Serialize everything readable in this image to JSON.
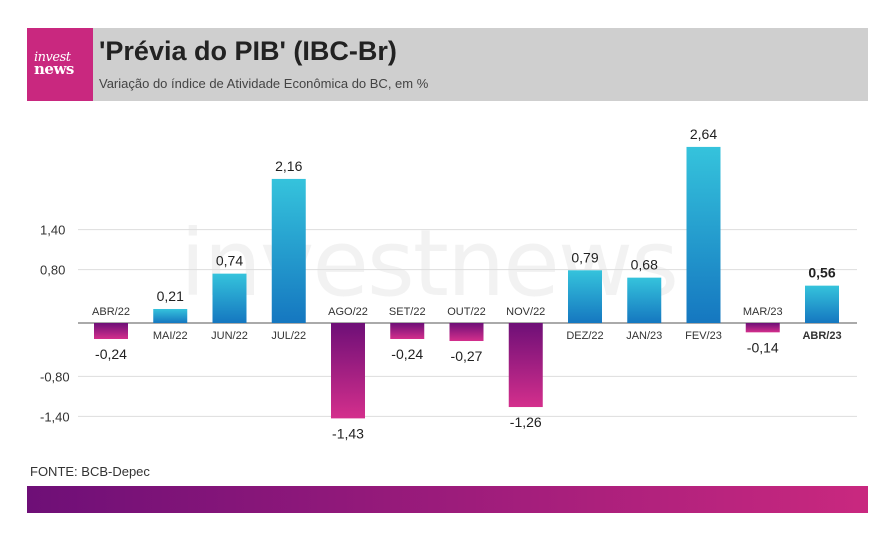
{
  "header": {
    "logo_line1": "invest",
    "logo_line2": "news",
    "title": "'Prévia do PIB' (IBC-Br)",
    "subtitle": "Variação do índice de Atividade Econômica do BC, em %"
  },
  "watermark": "investnews",
  "source": "FONTE: BCB-Depec",
  "colors": {
    "brand_magenta": "#c9287f",
    "brand_purple": "#6e0f77",
    "positive_top": "#35c3dc",
    "positive_bottom": "#1577c0",
    "negative_top": "#6e0f77",
    "negative_bottom": "#d42f8c"
  },
  "chart_data": {
    "type": "bar",
    "categories": [
      "ABR/22",
      "MAI/22",
      "JUN/22",
      "JUL/22",
      "AGO/22",
      "SET/22",
      "OUT/22",
      "NOV/22",
      "DEZ/22",
      "JAN/23",
      "FEV/23",
      "MAR/23",
      "ABR/23"
    ],
    "values": [
      -0.24,
      0.21,
      0.74,
      2.16,
      -1.43,
      -0.24,
      -0.27,
      -1.26,
      0.79,
      0.68,
      2.64,
      -0.14,
      0.56
    ],
    "value_labels": [
      "-0,24",
      "0,21",
      "0,74",
      "2,16",
      "-1,43",
      "-0,24",
      "-0,27",
      "-1,26",
      "0,79",
      "0,68",
      "2,64",
      "-0,14",
      "0,56"
    ],
    "highlight_index": 12,
    "yticks": [
      1.4,
      0.8,
      -0.8,
      -1.4
    ],
    "ytick_labels": [
      "1,40",
      "0,80",
      "-0,80",
      "-1,40"
    ],
    "ylim": [
      -1.5,
      2.9
    ],
    "grid": true
  }
}
